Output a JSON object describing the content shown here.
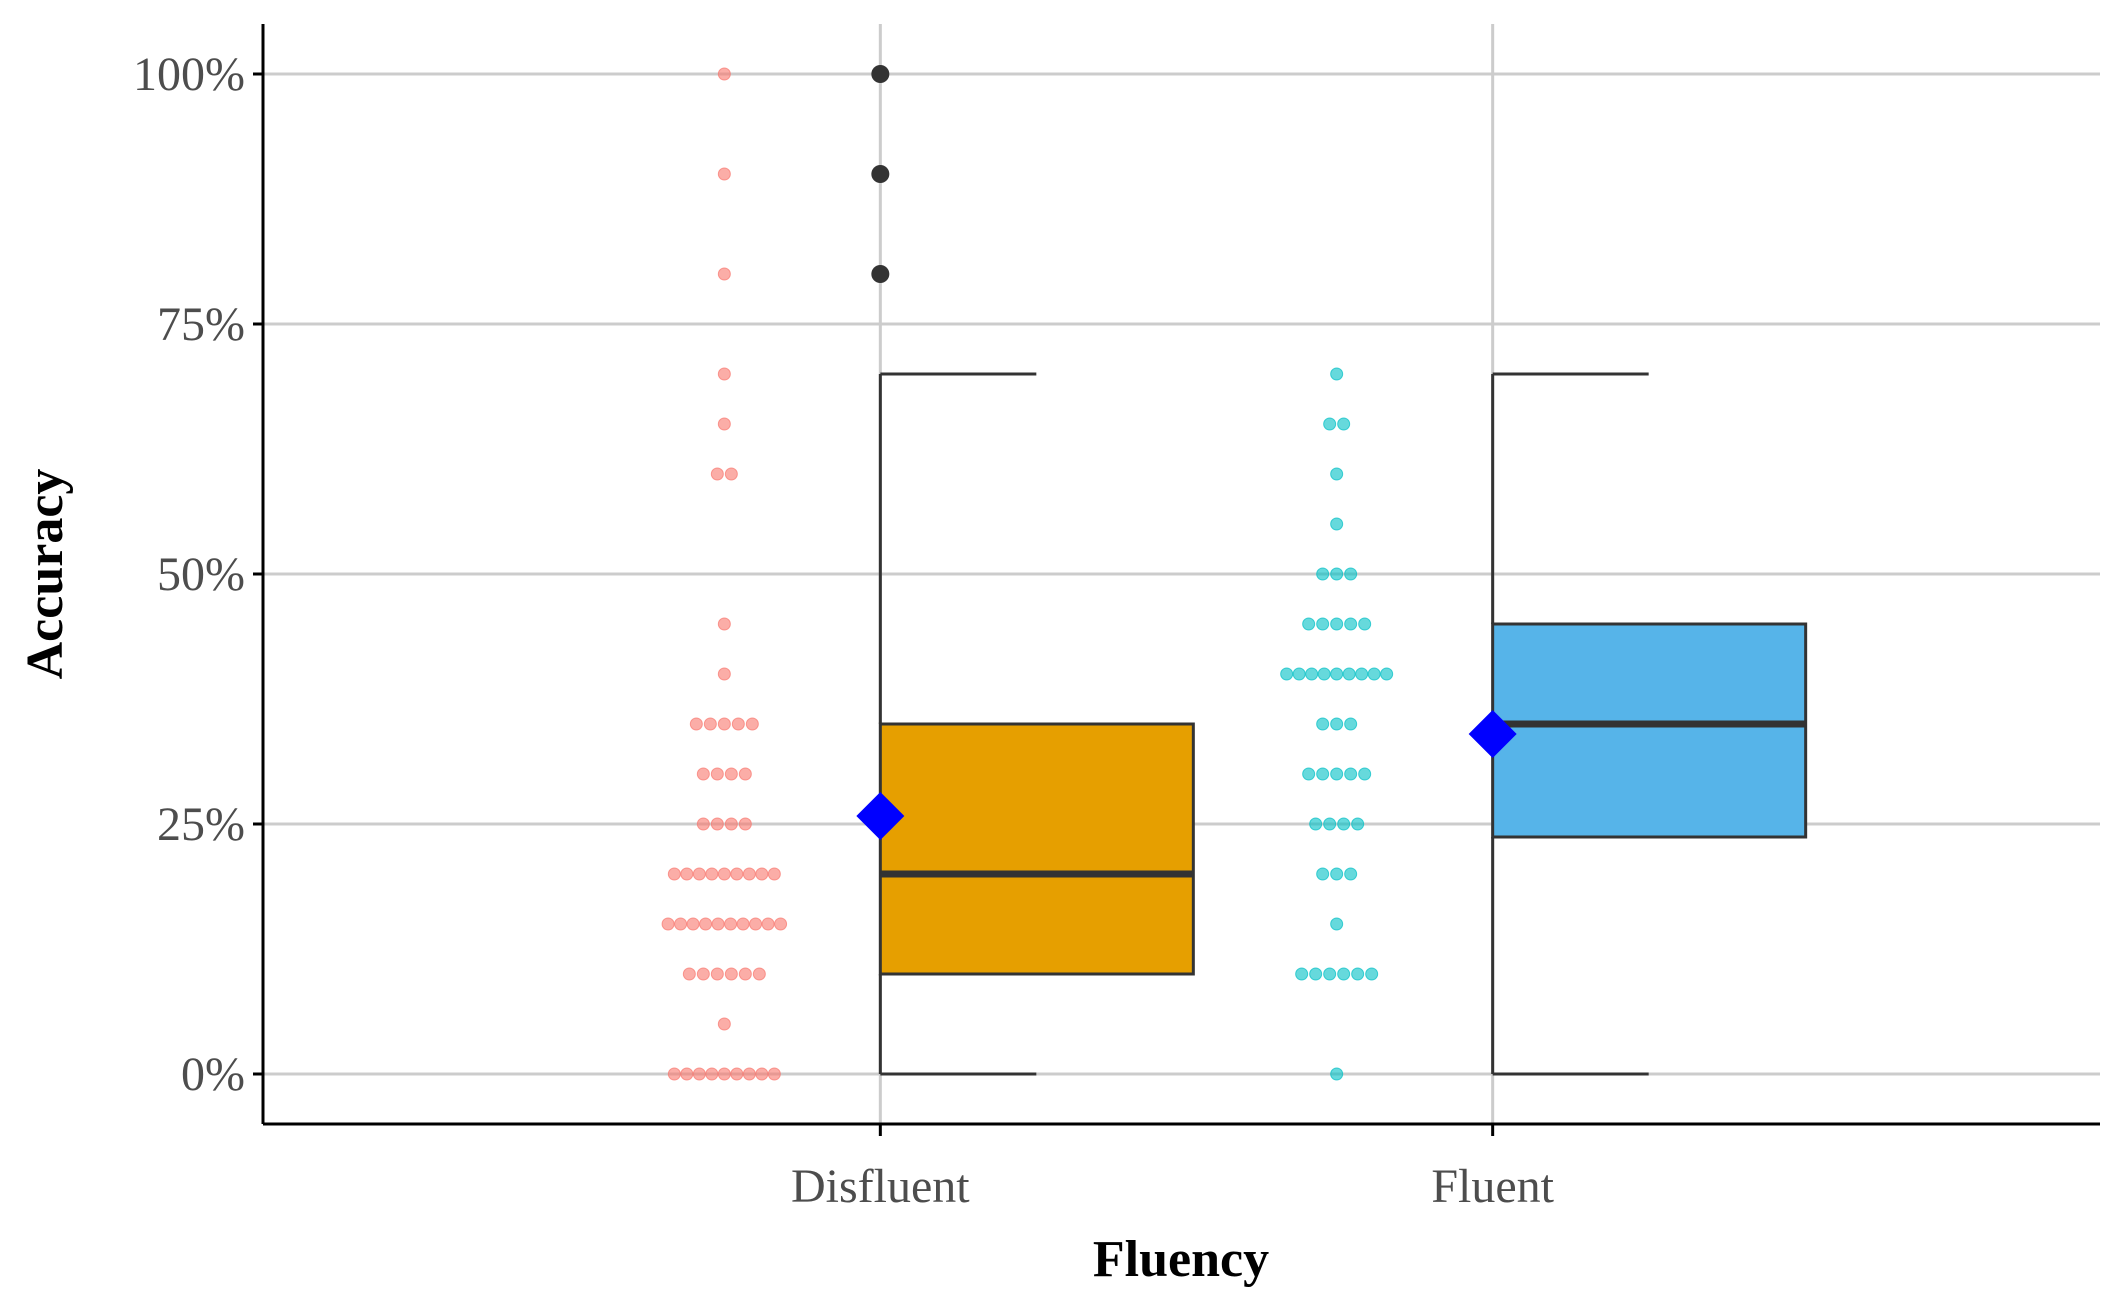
{
  "chart_data": {
    "type": "box",
    "xlabel": "Fluency",
    "ylabel": "Accuracy",
    "categories": [
      "Disfluent",
      "Fluent"
    ],
    "ylim": [
      -0.05,
      1.05
    ],
    "yticks": [
      0,
      0.25,
      0.5,
      0.75,
      1.0
    ],
    "ytick_labels": [
      "0%",
      "25%",
      "50%",
      "75%",
      "100%"
    ],
    "grid": true,
    "legend": "none",
    "boxes": [
      {
        "category": "Disfluent",
        "fill": "#E69F00",
        "whisker_low": 0.0,
        "q1": 0.1,
        "median": 0.2,
        "q3": 0.35,
        "whisker_high": 0.7,
        "mean": 0.258,
        "outliers": [
          0.8,
          0.9,
          1.0
        ]
      },
      {
        "category": "Fluent",
        "fill": "#56B4E9",
        "whisker_low": 0.0,
        "q1": 0.237,
        "median": 0.35,
        "q3": 0.45,
        "whisker_high": 0.7,
        "mean": 0.34,
        "outliers": []
      }
    ],
    "points": [
      {
        "category": "Disfluent",
        "color": "#F8766D",
        "values": [
          0,
          0,
          0,
          0,
          0,
          0,
          0,
          0,
          0,
          0.05,
          0.1,
          0.1,
          0.1,
          0.1,
          0.1,
          0.1,
          0.15,
          0.15,
          0.15,
          0.15,
          0.15,
          0.15,
          0.15,
          0.15,
          0.15,
          0.15,
          0.2,
          0.2,
          0.2,
          0.2,
          0.2,
          0.2,
          0.2,
          0.2,
          0.2,
          0.25,
          0.25,
          0.25,
          0.25,
          0.3,
          0.3,
          0.3,
          0.3,
          0.35,
          0.35,
          0.35,
          0.35,
          0.35,
          0.4,
          0.45,
          0.6,
          0.6,
          0.65,
          0.7,
          0.8,
          0.9,
          1.0
        ]
      },
      {
        "category": "Fluent",
        "color": "#00BFC4",
        "values": [
          0,
          0.1,
          0.1,
          0.1,
          0.1,
          0.1,
          0.1,
          0.15,
          0.2,
          0.2,
          0.2,
          0.25,
          0.25,
          0.25,
          0.25,
          0.3,
          0.3,
          0.3,
          0.3,
          0.3,
          0.35,
          0.35,
          0.35,
          0.4,
          0.4,
          0.4,
          0.4,
          0.4,
          0.4,
          0.4,
          0.4,
          0.4,
          0.45,
          0.45,
          0.45,
          0.45,
          0.45,
          0.5,
          0.5,
          0.5,
          0.55,
          0.6,
          0.65,
          0.65,
          0.7
        ]
      }
    ],
    "colors": {
      "grid": "#cccccc",
      "axis": "#000000",
      "box_line": "#333333",
      "outlier": "#333333",
      "mean_marker": "#0000FF"
    }
  }
}
